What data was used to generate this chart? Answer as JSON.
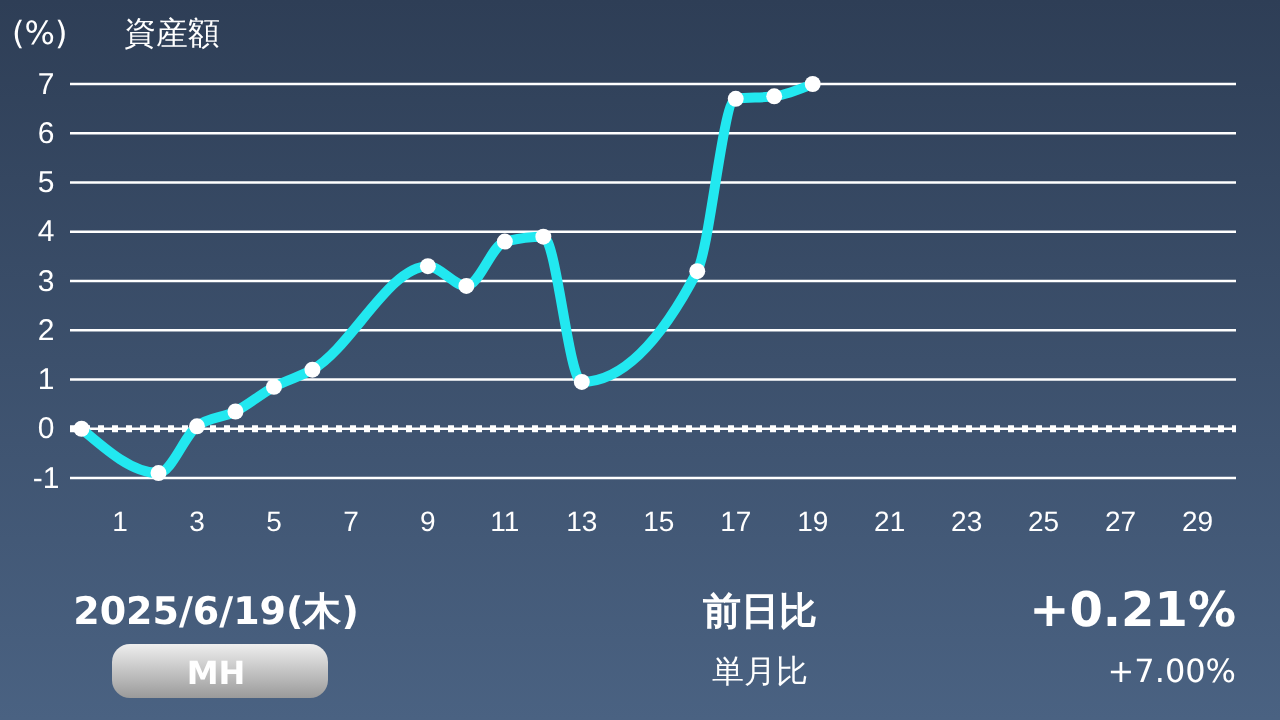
{
  "chart_data": {
    "type": "line",
    "title": "資産額",
    "ylabel": "(%)",
    "x": [
      0,
      2,
      3,
      4,
      5,
      6,
      9,
      10,
      11,
      12,
      13,
      16,
      17,
      18,
      19
    ],
    "series": [
      {
        "color": "#22e8f0",
        "values": [
          0,
          -0.9,
          0.05,
          0.35,
          0.85,
          1.2,
          3.3,
          2.9,
          3.8,
          3.9,
          0.95,
          3.2,
          6.7,
          6.75,
          7.0
        ]
      }
    ],
    "xlim": [
      -0.3,
      30
    ],
    "xticks": [
      1,
      3,
      5,
      7,
      9,
      11,
      13,
      15,
      17,
      19,
      21,
      23,
      25,
      27,
      29
    ],
    "ylim": [
      -1,
      7
    ],
    "yticks": [
      -1,
      0,
      1,
      2,
      3,
      4,
      5,
      6,
      7
    ],
    "grid": "y",
    "marker": "circle",
    "line_style": "solid",
    "ref_lines": [
      {
        "axis": "y",
        "value": 0,
        "line_style": "dotted",
        "color": "#ffffff"
      }
    ],
    "annotations": [
      "2025/6/19(木)",
      "MH",
      "前日比",
      "+0.21%",
      "単月比",
      "+7.00%"
    ]
  }
}
